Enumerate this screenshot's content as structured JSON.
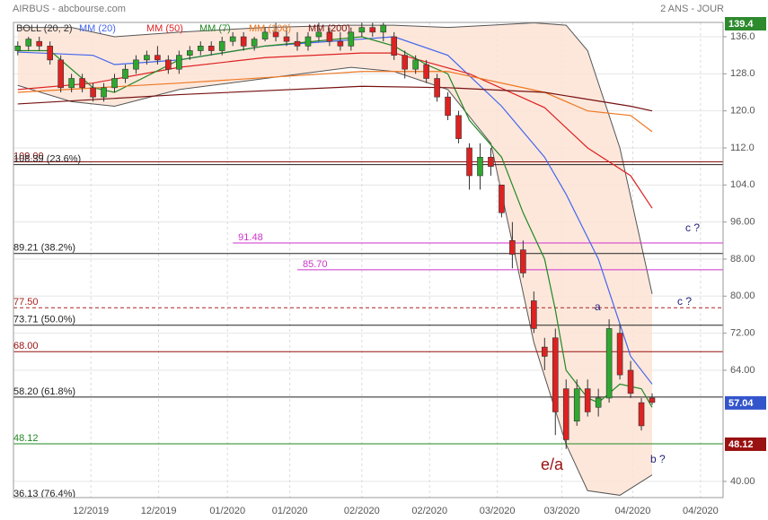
{
  "chart_data": {
    "type": "candlestick",
    "title": "AIRBUS - abcbourse.com",
    "subtitle": "2 ANS - JOUR",
    "xlim": [
      -0.4,
      65.6
    ],
    "ylim": [
      36.5,
      139.1
    ],
    "xticks": [
      {
        "value": 6.8,
        "label": "12/2019"
      },
      {
        "value": 13.1,
        "label": "12/2019"
      },
      {
        "value": 19.5,
        "label": "01/2020"
      },
      {
        "value": 25.3,
        "label": "01/2020"
      },
      {
        "value": 32.0,
        "label": "02/2020"
      },
      {
        "value": 38.3,
        "label": "02/2020"
      },
      {
        "value": 44.6,
        "label": "03/2020"
      },
      {
        "value": 50.6,
        "label": "03/2020"
      },
      {
        "value": 57.2,
        "label": "04/2020"
      },
      {
        "value": 63.5,
        "label": "04/2020"
      }
    ],
    "yticks": [
      {
        "value": 136,
        "label": "136.0"
      },
      {
        "value": 128,
        "label": "128.0"
      },
      {
        "value": 120,
        "label": "120.0"
      },
      {
        "value": 112,
        "label": "112.0"
      },
      {
        "value": 104,
        "label": "104.0"
      },
      {
        "value": 96,
        "label": "96.00"
      },
      {
        "value": 88,
        "label": "88.00"
      },
      {
        "value": 80,
        "label": "80.00"
      },
      {
        "value": 72,
        "label": "72.00"
      },
      {
        "value": 64,
        "label": "64.00"
      },
      {
        "value": 40,
        "label": "40.00"
      }
    ],
    "grid": true,
    "up_color": "#2fa82f",
    "down_color": "#dd2222",
    "candles": {
      "open": [
        133,
        134,
        135,
        134,
        131,
        125,
        127,
        125,
        123,
        125,
        127,
        129,
        131,
        132,
        131,
        129,
        132,
        133,
        134,
        133,
        135,
        136,
        134,
        135.5,
        137,
        136,
        135,
        134,
        136,
        137,
        135,
        134,
        137,
        138,
        137,
        136,
        132,
        129,
        130,
        127,
        123,
        119,
        112,
        106,
        110,
        104,
        92,
        90,
        79,
        69,
        71,
        60,
        53,
        60,
        56,
        58,
        72,
        64,
        57,
        58
      ],
      "high": [
        135,
        136,
        136,
        135,
        132,
        128,
        128,
        126,
        126,
        128,
        130,
        132,
        133,
        134,
        132,
        133,
        134,
        135,
        135,
        136,
        137,
        137,
        136,
        138,
        139,
        138,
        137,
        137,
        139,
        138,
        137,
        138,
        139,
        139,
        139,
        137,
        133,
        132,
        131,
        128,
        124,
        120,
        113,
        113,
        112,
        104,
        96,
        92,
        81,
        71,
        73,
        62,
        62,
        62,
        60,
        75,
        74,
        66,
        58,
        59
      ],
      "low": [
        132,
        133,
        133,
        130,
        124,
        124,
        124,
        122,
        122,
        124,
        126,
        128,
        130,
        130,
        128,
        128,
        131,
        132,
        132,
        132,
        134,
        133,
        133,
        135,
        135,
        134,
        133,
        133,
        135,
        134,
        133,
        133,
        136,
        136,
        135,
        131,
        127,
        128,
        126,
        122,
        118,
        113,
        103,
        103,
        106,
        97,
        86,
        84,
        72,
        64,
        50,
        47,
        52,
        54,
        54,
        57,
        62,
        58,
        51,
        56.5
      ],
      "close": [
        134,
        135.5,
        134,
        131,
        125,
        127,
        125,
        123,
        125,
        127,
        129,
        131,
        132,
        131,
        129,
        132,
        133,
        134,
        133,
        135,
        136,
        134,
        135.5,
        137,
        136,
        135,
        134,
        136,
        137,
        135,
        134,
        137,
        138,
        137,
        138.5,
        132,
        129,
        131,
        127,
        123,
        119,
        114,
        106,
        110,
        108,
        98,
        89,
        85,
        73,
        67,
        55,
        49,
        60,
        55,
        58,
        73,
        63,
        59,
        52,
        57.04
      ]
    },
    "bollinger": {
      "name": "BOLL (20, 2)",
      "color": "#555555",
      "fill": "#fde3d5",
      "x": [
        0,
        5,
        9,
        15,
        23,
        31,
        35,
        40,
        44,
        48,
        51,
        53,
        56,
        59
      ],
      "upper": [
        138,
        138,
        136,
        137,
        138,
        138.5,
        138.5,
        138,
        138.5,
        139,
        138.5,
        133,
        112,
        80.5
      ],
      "lower": [
        125.5,
        122,
        121,
        124.6,
        127,
        129.4,
        128.5,
        124.6,
        113,
        70,
        48,
        38,
        37,
        41.4
      ]
    },
    "series": [
      {
        "name": "MM (20)",
        "color": "#4466ee",
        "x": [
          0,
          7,
          9,
          15,
          23,
          35,
          40,
          45,
          49,
          51,
          54,
          57,
          59
        ],
        "values": [
          132.7,
          132,
          130,
          131,
          134,
          136,
          132,
          121,
          110,
          102,
          88,
          67,
          61
        ]
      },
      {
        "name": "MM (50)",
        "color": "#dd2222",
        "x": [
          0,
          7,
          15,
          23,
          32,
          35,
          42,
          49,
          53,
          57,
          59
        ],
        "values": [
          124.6,
          126,
          129.4,
          131.5,
          132.5,
          132.5,
          128,
          120.7,
          112,
          106,
          99
        ]
      },
      {
        "name": "MM (7)",
        "color": "#228822",
        "x": [
          0,
          3,
          7,
          9,
          15,
          23,
          32,
          35,
          38,
          40,
          42,
          45,
          47,
          49,
          50,
          51,
          53,
          54,
          56,
          58,
          59
        ],
        "values": [
          133,
          133,
          125,
          124,
          131,
          134,
          136,
          134,
          130,
          128,
          118,
          110,
          98,
          88,
          77,
          64,
          58,
          57,
          61,
          60,
          56
        ]
      },
      {
        "name": "MM (100)",
        "color": "#ee7722",
        "x": [
          0,
          15,
          32,
          40,
          49,
          53,
          57,
          59
        ],
        "values": [
          124,
          126,
          128.5,
          128.5,
          124,
          120,
          119,
          115.5
        ]
      },
      {
        "name": "MM (200)",
        "color": "#771111",
        "x": [
          0,
          15,
          32,
          40,
          49,
          53,
          57,
          59
        ],
        "values": [
          121.5,
          123.5,
          125.3,
          125,
          124,
          122.5,
          121,
          120
        ]
      }
    ],
    "levels": [
      {
        "value": 109,
        "label": "109.00",
        "color": "#881111"
      },
      {
        "value": 108.39,
        "label": "108.39 (23.6%)",
        "color": "#222222"
      },
      {
        "value": 91.48,
        "label": "91.48",
        "color": "#cc33cc",
        "x_start": 20
      },
      {
        "value": 89.21,
        "label": "89.21 (38.2%)",
        "color": "#222222"
      },
      {
        "value": 85.7,
        "label": "85.70",
        "color": "#cc33cc",
        "x_start": 26
      },
      {
        "value": 77.5,
        "label": "77.50",
        "color": "#aa2222",
        "dashed": true
      },
      {
        "value": 73.71,
        "label": "73.71 (50.0%)",
        "color": "#222222"
      },
      {
        "value": 68,
        "label": "68.00",
        "color": "#991111"
      },
      {
        "value": 58.2,
        "label": "58.20 (61.8%)",
        "color": "#222222"
      },
      {
        "value": 48.12,
        "label": "48.12",
        "color": "#228822"
      },
      {
        "value": 36.13,
        "label": "36.13 (76.4%)",
        "color": "#222222"
      }
    ],
    "price_tags": [
      {
        "value": 139.4,
        "label": "139.4",
        "color": "#2d8a2d"
      },
      {
        "value": 57.04,
        "label": "57.04",
        "color": "#3355cc"
      },
      {
        "value": 48.12,
        "label": "48.12",
        "color": "#991111"
      }
    ],
    "annotations": [
      "c ?",
      "c ?",
      "a",
      "b ?",
      "e/a"
    ]
  }
}
